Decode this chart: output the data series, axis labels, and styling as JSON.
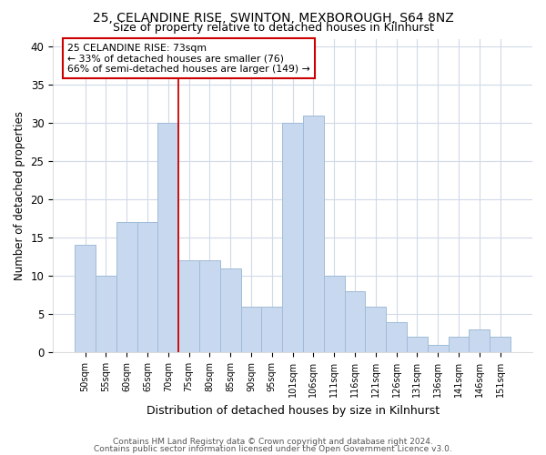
{
  "title_line1": "25, CELANDINE RISE, SWINTON, MEXBOROUGH, S64 8NZ",
  "title_line2": "Size of property relative to detached houses in Kilnhurst",
  "xlabel": "Distribution of detached houses by size in Kilnhurst",
  "ylabel": "Number of detached properties",
  "footnote1": "Contains HM Land Registry data © Crown copyright and database right 2024.",
  "footnote2": "Contains public sector information licensed under the Open Government Licence v3.0.",
  "categories": [
    "50sqm",
    "55sqm",
    "60sqm",
    "65sqm",
    "70sqm",
    "75sqm",
    "80sqm",
    "85sqm",
    "90sqm",
    "95sqm",
    "101sqm",
    "106sqm",
    "111sqm",
    "116sqm",
    "121sqm",
    "126sqm",
    "131sqm",
    "136sqm",
    "141sqm",
    "146sqm",
    "151sqm"
  ],
  "values": [
    14,
    10,
    17,
    17,
    30,
    12,
    12,
    11,
    6,
    6,
    30,
    31,
    10,
    8,
    6,
    4,
    2,
    1,
    2,
    3,
    2
  ],
  "bar_color": "#c8d8ee",
  "bar_edge_color": "#a0bcd8",
  "vline_x": 4.5,
  "vline_color": "#cc0000",
  "annotation_text": "25 CELANDINE RISE: 73sqm\n← 33% of detached houses are smaller (76)\n66% of semi-detached houses are larger (149) →",
  "annotation_box_color": "#ffffff",
  "annotation_box_edge_color": "#cc0000",
  "ylim": [
    0,
    41
  ],
  "yticks": [
    0,
    5,
    10,
    15,
    20,
    25,
    30,
    35,
    40
  ],
  "bg_color": "#ffffff",
  "grid_color": "#d0dae8",
  "title_fontsize": 10,
  "subtitle_fontsize": 9,
  "footnote_fontsize": 6.5
}
